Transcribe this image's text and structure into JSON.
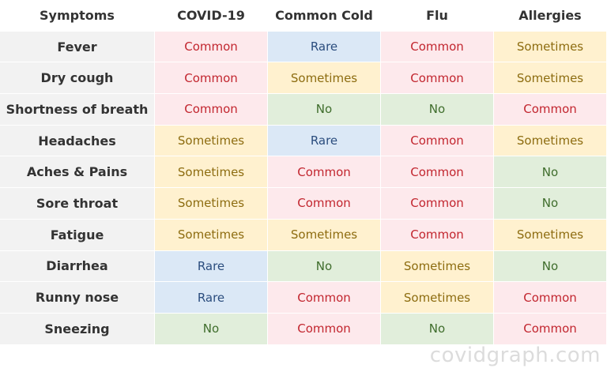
{
  "table": {
    "headers": [
      "Symptoms",
      "COVID-19",
      "Common Cold",
      "Flu",
      "Allergies"
    ],
    "rows": [
      {
        "symptom": "Fever",
        "values": [
          "Common",
          "Rare",
          "Common",
          "Sometimes"
        ]
      },
      {
        "symptom": "Dry cough",
        "values": [
          "Common",
          "Sometimes",
          "Common",
          "Sometimes"
        ]
      },
      {
        "symptom": "Shortness of breath",
        "values": [
          "Common",
          "No",
          "No",
          "Common"
        ]
      },
      {
        "symptom": "Headaches",
        "values": [
          "Sometimes",
          "Rare",
          "Common",
          "Sometimes"
        ]
      },
      {
        "symptom": "Aches & Pains",
        "values": [
          "Sometimes",
          "Common",
          "Common",
          "No"
        ]
      },
      {
        "symptom": "Sore throat",
        "values": [
          "Sometimes",
          "Common",
          "Common",
          "No"
        ]
      },
      {
        "symptom": "Fatigue",
        "values": [
          "Sometimes",
          "Sometimes",
          "Common",
          "Sometimes"
        ]
      },
      {
        "symptom": "Diarrhea",
        "values": [
          "Rare",
          "No",
          "Sometimes",
          "No"
        ]
      },
      {
        "symptom": "Runny nose",
        "values": [
          "Rare",
          "Common",
          "Sometimes",
          "Common"
        ]
      },
      {
        "symptom": "Sneezing",
        "values": [
          "No",
          "Common",
          "No",
          "Common"
        ]
      }
    ]
  },
  "colors": {
    "common_bg": "#fde9ec",
    "common_text": "#c2262f",
    "sometimes_bg": "#fff1cf",
    "sometimes_text": "#8d6c10",
    "rare_bg": "#dbe8f6",
    "rare_text": "#2b4d7e",
    "no_bg": "#e1eedb",
    "no_text": "#3f6d2c",
    "row_label_bg": "#f2f2f2"
  },
  "watermark": "covidgraph.com"
}
